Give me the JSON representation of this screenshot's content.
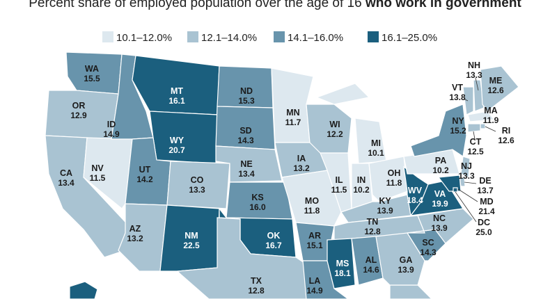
{
  "chart_data": {
    "type": "choropleth",
    "title": "Percent share of employed population over the age of 16",
    "title_bold": "who work in government",
    "legend": [
      {
        "label": "10.1–12.0%",
        "color": "#dde8ef",
        "text_color": "#1b1b1b",
        "from": 10.1,
        "to": 12.0
      },
      {
        "label": "12.1–14.0%",
        "color": "#a9c3d2",
        "text_color": "#1b1b1b",
        "from": 12.1,
        "to": 14.0
      },
      {
        "label": "14.1–16.0%",
        "color": "#6894ac",
        "text_color": "#1b1b1b",
        "from": 14.1,
        "to": 16.0
      },
      {
        "label": "16.1–25.0%",
        "color": "#1b5f7e",
        "text_color": "#ffffff",
        "from": 16.1,
        "to": 25.0
      }
    ],
    "states": [
      {
        "code": "WA",
        "value": 15.5
      },
      {
        "code": "OR",
        "value": 12.9
      },
      {
        "code": "CA",
        "value": 13.4
      },
      {
        "code": "NV",
        "value": 11.5
      },
      {
        "code": "ID",
        "value": 14.9
      },
      {
        "code": "MT",
        "value": 16.1
      },
      {
        "code": "WY",
        "value": 20.7
      },
      {
        "code": "UT",
        "value": 14.2
      },
      {
        "code": "AZ",
        "value": 13.2
      },
      {
        "code": "CO",
        "value": 13.3
      },
      {
        "code": "NM",
        "value": 22.5
      },
      {
        "code": "ND",
        "value": 15.3
      },
      {
        "code": "SD",
        "value": 14.3
      },
      {
        "code": "NE",
        "value": 13.4
      },
      {
        "code": "KS",
        "value": 16.0,
        "value_label": "16.0"
      },
      {
        "code": "OK",
        "value": 16.7
      },
      {
        "code": "TX",
        "value": 12.8
      },
      {
        "code": "MN",
        "value": 11.7
      },
      {
        "code": "IA",
        "value": 13.2
      },
      {
        "code": "MO",
        "value": 11.8
      },
      {
        "code": "AR",
        "value": 15.1
      },
      {
        "code": "LA",
        "value": 14.9
      },
      {
        "code": "WI",
        "value": 12.2
      },
      {
        "code": "IL",
        "value": 11.5
      },
      {
        "code": "MI",
        "value": 10.1
      },
      {
        "code": "IN",
        "value": 10.2
      },
      {
        "code": "OH",
        "value": 11.8
      },
      {
        "code": "KY",
        "value": 13.9
      },
      {
        "code": "TN",
        "value": 12.8
      },
      {
        "code": "MS",
        "value": 18.1
      },
      {
        "code": "AL",
        "value": 14.6
      },
      {
        "code": "GA",
        "value": 13.9
      },
      {
        "code": "SC",
        "value": 14.3
      },
      {
        "code": "NC",
        "value": 13.9
      },
      {
        "code": "WV",
        "value": 18.4
      },
      {
        "code": "VA",
        "value": 19.9
      },
      {
        "code": "PA",
        "value": 10.2
      },
      {
        "code": "NY",
        "value": 15.2
      },
      {
        "code": "VT",
        "value": 13.8
      },
      {
        "code": "NH",
        "value": 13.3
      },
      {
        "code": "ME",
        "value": 12.6
      },
      {
        "code": "MA",
        "value": 11.9
      },
      {
        "code": "RI",
        "value": 12.6
      },
      {
        "code": "CT",
        "value": 12.5
      },
      {
        "code": "NJ",
        "value": 13.3
      },
      {
        "code": "DE",
        "value": 13.7
      },
      {
        "code": "MD",
        "value": 21.4
      },
      {
        "code": "DC",
        "value": 25.0,
        "value_label": "25.0"
      }
    ]
  }
}
